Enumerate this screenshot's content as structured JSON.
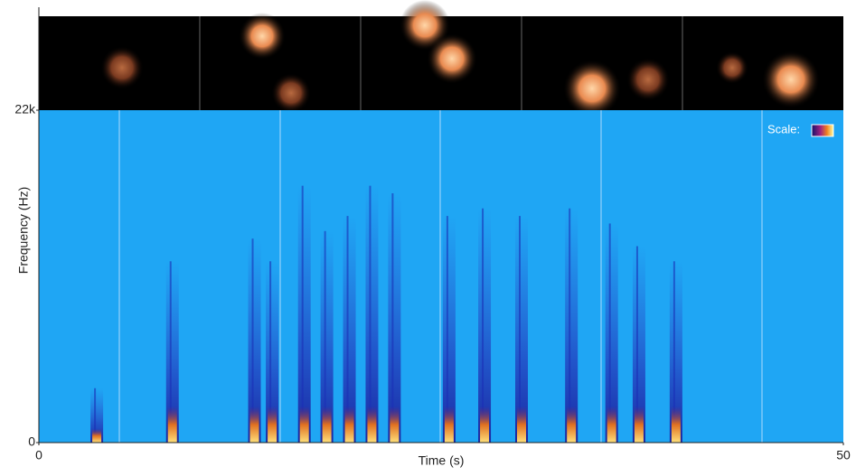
{
  "chart_data": {
    "type": "spectrogram",
    "x_label": "Time (s)",
    "y_label": "Frequency (Hz)",
    "legend_label": "Scale:",
    "xlim": [
      0,
      50
    ],
    "ylim": [
      0,
      22000
    ],
    "xticks": [
      0,
      50
    ],
    "yticks": [
      0,
      {
        "value": 22000,
        "label": "22k"
      }
    ],
    "background_color": "#1fa6f4",
    "color": "#1b2fb5",
    "x": [
      3.6,
      8.3,
      13.4,
      14.5,
      16.5,
      17.9,
      19.3,
      20.7,
      22.1,
      25.5,
      27.7,
      30.0,
      33.1,
      35.6,
      37.3,
      39.6
    ],
    "values": [
      3600,
      12000,
      13500,
      12000,
      17000,
      14000,
      15000,
      17000,
      16500,
      15000,
      15500,
      15000,
      15500,
      14500,
      13000,
      12000
    ]
  }
}
